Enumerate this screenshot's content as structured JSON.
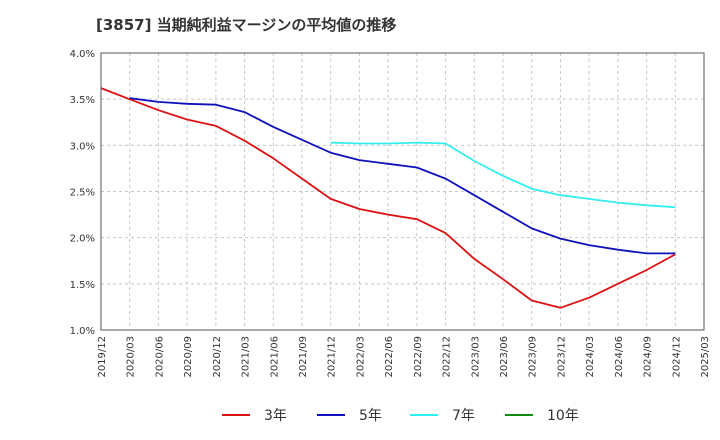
{
  "title": "[3857]  当期純利益マージンの平均値の推移",
  "chart_data": {
    "type": "line",
    "title": "[3857]  当期純利益マージンの平均値の推移",
    "xlabel": "",
    "ylabel": "",
    "ylim": [
      1.0,
      4.0
    ],
    "y_ticks": [
      "1.0%",
      "1.5%",
      "2.0%",
      "2.5%",
      "3.0%",
      "3.5%",
      "4.0%"
    ],
    "x_ticks": [
      "2019/12",
      "2020/03",
      "2020/06",
      "2020/09",
      "2020/12",
      "2021/03",
      "2021/06",
      "2021/09",
      "2021/12",
      "2022/03",
      "2022/06",
      "2022/09",
      "2022/12",
      "2023/03",
      "2023/06",
      "2023/09",
      "2023/12",
      "2024/03",
      "2024/06",
      "2024/09",
      "2024/12",
      "2025/03"
    ],
    "grid": true,
    "legend_position": "bottom",
    "series": [
      {
        "name": "3年",
        "color": "#dd1111",
        "x": [
          "2019/12",
          "2020/03",
          "2020/06",
          "2020/09",
          "2020/12",
          "2021/03",
          "2021/06",
          "2021/09",
          "2021/12",
          "2022/03",
          "2022/06",
          "2022/09",
          "2022/12",
          "2023/03",
          "2023/06",
          "2023/09",
          "2023/12",
          "2024/03",
          "2024/06",
          "2024/09",
          "2024/12"
        ],
        "values": [
          3.62,
          3.5,
          3.38,
          3.28,
          3.21,
          3.05,
          2.86,
          2.64,
          2.42,
          2.31,
          2.25,
          2.2,
          2.05,
          1.77,
          1.55,
          1.32,
          1.24,
          1.35,
          1.5,
          1.65,
          1.82
        ]
      },
      {
        "name": "5年",
        "color": "#1111bb",
        "x": [
          "2020/03",
          "2020/06",
          "2020/09",
          "2020/12",
          "2021/03",
          "2021/06",
          "2021/09",
          "2021/12",
          "2022/03",
          "2022/06",
          "2022/09",
          "2022/12",
          "2023/03",
          "2023/06",
          "2023/09",
          "2023/12",
          "2024/03",
          "2024/06",
          "2024/09",
          "2024/12"
        ],
        "values": [
          3.51,
          3.47,
          3.45,
          3.44,
          3.36,
          3.2,
          3.06,
          2.92,
          2.84,
          2.8,
          2.76,
          2.64,
          2.46,
          2.28,
          2.1,
          1.99,
          1.92,
          1.87,
          1.83,
          1.83
        ]
      },
      {
        "name": "7年",
        "color": "#33eeee",
        "x": [
          "2021/12",
          "2022/03",
          "2022/06",
          "2022/09",
          "2022/12",
          "2023/03",
          "2023/06",
          "2023/09",
          "2023/12",
          "2024/03",
          "2024/06",
          "2024/09",
          "2024/12"
        ],
        "values": [
          3.03,
          3.02,
          3.02,
          3.03,
          3.02,
          2.83,
          2.67,
          2.53,
          2.46,
          2.42,
          2.38,
          2.35,
          2.33
        ]
      },
      {
        "name": "10年",
        "color": "#118811",
        "x": [],
        "values": []
      }
    ]
  }
}
